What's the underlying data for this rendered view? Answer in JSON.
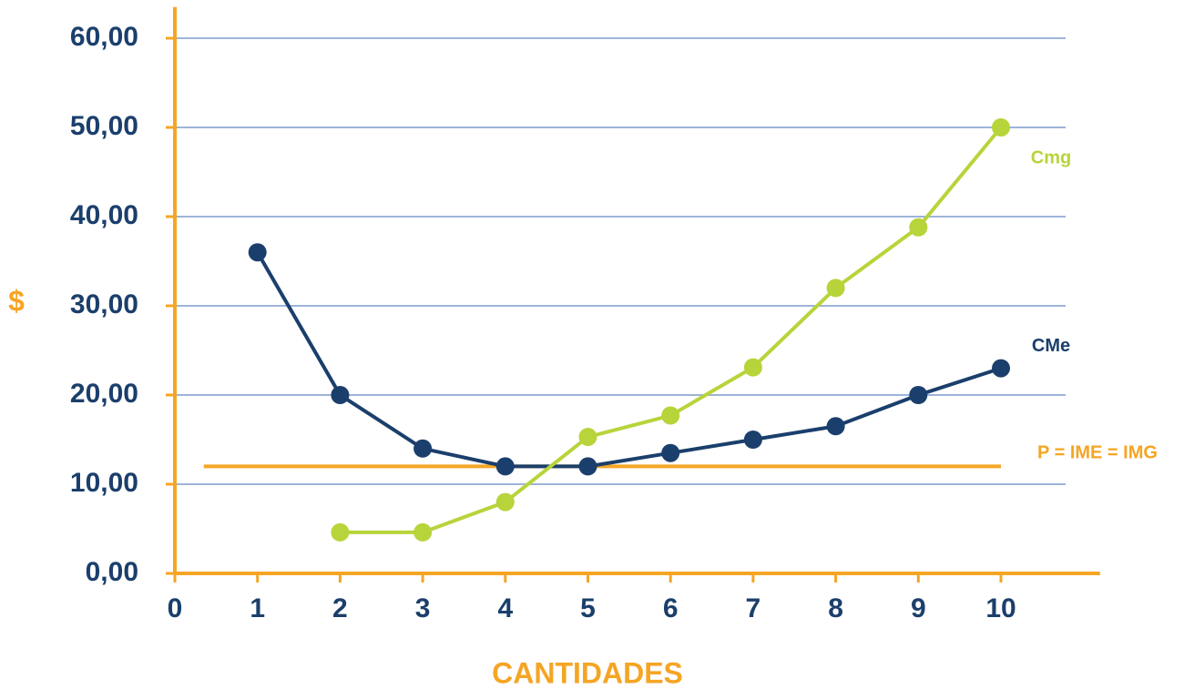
{
  "chart_data": {
    "type": "line",
    "xlabel": "CANTIDADES",
    "ylabel": "$",
    "x": [
      1,
      2,
      3,
      4,
      5,
      6,
      7,
      8,
      9,
      10
    ],
    "series": [
      {
        "name": "CMe",
        "color": "#1b3f6c",
        "values": [
          36,
          20,
          14,
          12,
          12,
          13.5,
          15,
          16.5,
          20,
          23
        ]
      },
      {
        "name": "Cmg",
        "color": "#b7d43a",
        "values": [
          null,
          4.6,
          4.6,
          8,
          15.3,
          17.7,
          23.1,
          32,
          38.8,
          50
        ]
      }
    ],
    "hlines": [
      {
        "name": "P = IME = IMG",
        "color": "#f5a524",
        "value": 12,
        "x": [
          0.35,
          10
        ]
      }
    ],
    "xlim": [
      0,
      11.2
    ],
    "ylim": [
      0,
      63.5
    ],
    "xticks": [
      0,
      1,
      2,
      3,
      4,
      5,
      6,
      7,
      8,
      9,
      10
    ],
    "yticks": [
      {
        "value": 0,
        "label": "0,00"
      },
      {
        "value": 10,
        "label": "10,00"
      },
      {
        "value": 20,
        "label": "20,00"
      },
      {
        "value": 30,
        "label": "30,00"
      },
      {
        "value": 40,
        "label": "40,00"
      },
      {
        "value": 50,
        "label": "50,00"
      },
      {
        "value": 60,
        "label": "60,00"
      }
    ],
    "grid": true,
    "axis_color": "#f5a524",
    "tick_color": "#1b3f6c",
    "grid_color": "#9db4d8"
  }
}
